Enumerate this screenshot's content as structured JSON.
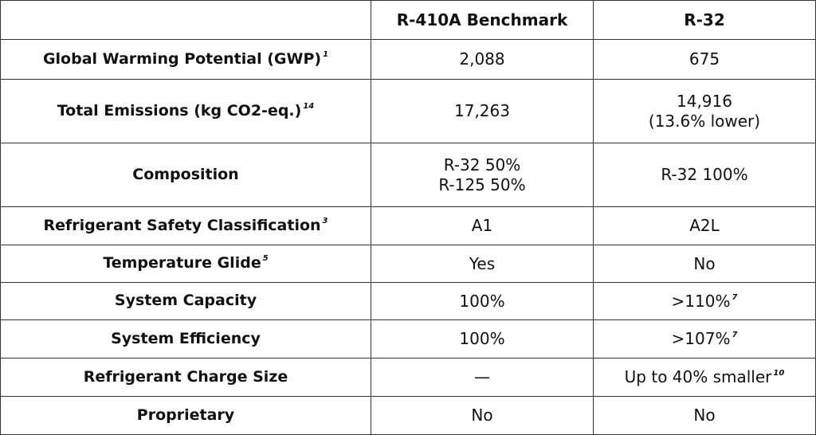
{
  "table": {
    "headers": [
      "",
      "R-410A Benchmark",
      "R-32"
    ],
    "rows": [
      {
        "label": "Global Warming Potential (GWP)",
        "label_note": "1",
        "r410a": [
          "2,088"
        ],
        "r410a_note": "",
        "r32": [
          "675"
        ],
        "r32_note": ""
      },
      {
        "label": "Total Emissions (kg CO2-eq.)",
        "label_note": "14",
        "r410a": [
          "17,263"
        ],
        "r410a_note": "",
        "r32": [
          "14,916",
          "(13.6% lower)"
        ],
        "r32_note": ""
      },
      {
        "label": "Composition",
        "label_note": "",
        "r410a": [
          "R-32 50%",
          "R-125 50%"
        ],
        "r410a_note": "",
        "r32": [
          "R-32 100%"
        ],
        "r32_note": ""
      },
      {
        "label": "Refrigerant Safety Classification",
        "label_note": "3",
        "r410a": [
          "A1"
        ],
        "r410a_note": "",
        "r32": [
          "A2L"
        ],
        "r32_note": ""
      },
      {
        "label": "Temperature Glide",
        "label_note": "5",
        "r410a": [
          "Yes"
        ],
        "r410a_note": "",
        "r32": [
          "No"
        ],
        "r32_note": ""
      },
      {
        "label": "System Capacity",
        "label_note": "",
        "r410a": [
          "100%"
        ],
        "r410a_note": "",
        "r32": [
          ">110%"
        ],
        "r32_note": "7"
      },
      {
        "label": "System Efficiency",
        "label_note": "",
        "r410a": [
          "100%"
        ],
        "r410a_note": "",
        "r32": [
          ">107%"
        ],
        "r32_note": "7"
      },
      {
        "label": "Refrigerant Charge Size",
        "label_note": "",
        "r410a": [
          "—"
        ],
        "r410a_note": "",
        "r32": [
          "Up to 40% smaller"
        ],
        "r32_note": "10"
      },
      {
        "label": "Proprietary",
        "label_note": "",
        "r410a": [
          "No"
        ],
        "r410a_note": "",
        "r32": [
          "No"
        ],
        "r32_note": ""
      }
    ]
  }
}
